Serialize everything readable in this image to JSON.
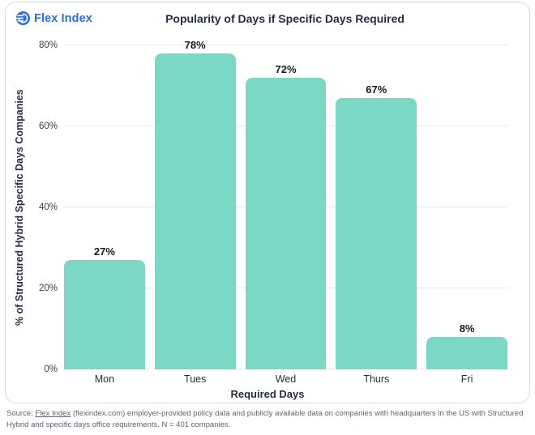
{
  "logo": {
    "text": "Flex Index",
    "color": "#2c6ce5"
  },
  "chart_data": {
    "type": "bar",
    "title": "Popularity of Days if Specific Days Required",
    "categories": [
      "Mon",
      "Tues",
      "Wed",
      "Thurs",
      "Fri"
    ],
    "values": [
      27,
      78,
      72,
      67,
      8
    ],
    "value_labels": [
      "27%",
      "78%",
      "72%",
      "67%",
      "8%"
    ],
    "xlabel": "Required Days",
    "ylabel": "% of Structured Hybrid Specific Days Companies",
    "ylim": [
      0,
      80
    ],
    "yticks": [
      0,
      20,
      40,
      60,
      80
    ],
    "ytick_labels": [
      "0%",
      "20%",
      "40%",
      "60%",
      "80%"
    ],
    "bar_color": "#7bd8c5",
    "grid": true,
    "legend_position": "none"
  },
  "source": {
    "prefix": "Source: ",
    "link_text": "Flex Index",
    "suffix": " (flexindex.com) employer-provided policy data and publicly available data on companies with headquarters in the US with Structured Hybrid and specific days office requirements. N = 401 companies."
  }
}
